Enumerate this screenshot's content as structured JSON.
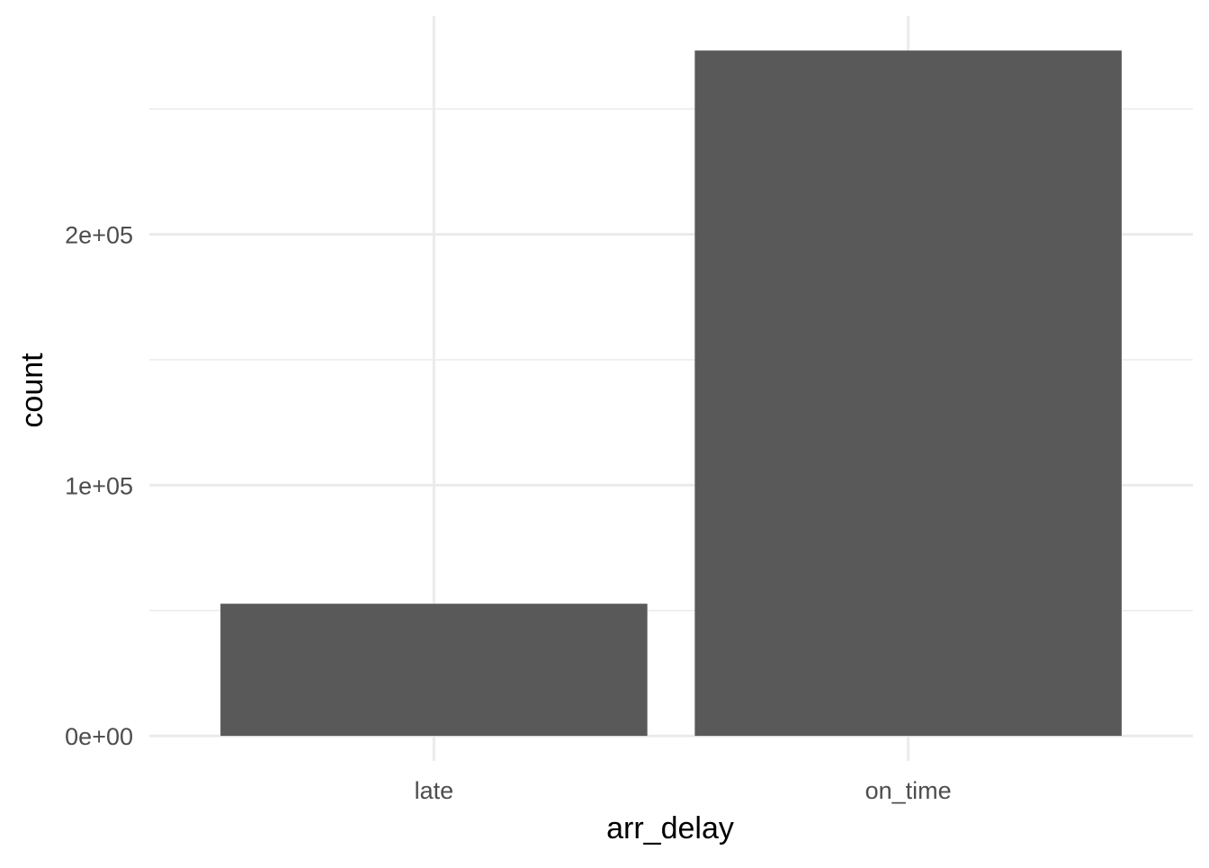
{
  "chart_data": {
    "type": "bar",
    "title": "",
    "xlabel": "arr_delay",
    "ylabel": "count",
    "categories": [
      "late",
      "on_time"
    ],
    "values": [
      52700,
      273300
    ],
    "ylim": [
      -10000,
      287000
    ],
    "y_ticks": [
      0,
      100000,
      200000
    ],
    "y_tick_labels": [
      "0e+00",
      "1e+05",
      "2e+05"
    ],
    "y_minor_ticks": [
      50000,
      150000,
      250000
    ],
    "grid": true,
    "legend": "none",
    "bar_color": "#595959",
    "grid_color": "#ebebeb"
  }
}
